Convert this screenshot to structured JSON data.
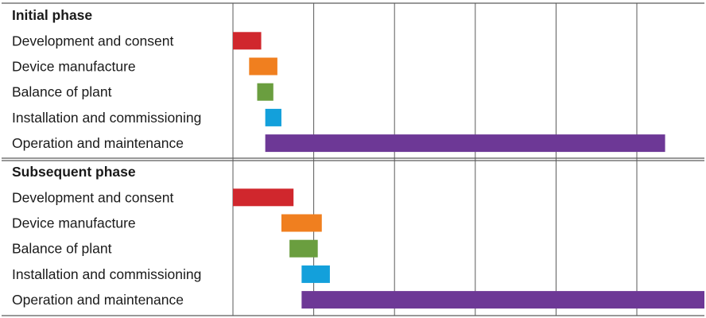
{
  "chart_data": {
    "type": "gantt",
    "title": "",
    "xlabel": "",
    "ylabel": "",
    "x_tick_labels": [],
    "x_unit": "grid column",
    "xlim": [
      0,
      6
    ],
    "grid": true,
    "legend": "none",
    "phases": [
      {
        "name": "Initial phase",
        "tasks": [
          {
            "name": "Development and consent",
            "start": 0.0,
            "end": 0.35,
            "color": "#d0272d"
          },
          {
            "name": "Device manufacture",
            "start": 0.2,
            "end": 0.55,
            "color": "#f07f1f"
          },
          {
            "name": "Balance of plant",
            "start": 0.3,
            "end": 0.5,
            "color": "#6a9e3f"
          },
          {
            "name": "Installation and commissioning",
            "start": 0.4,
            "end": 0.6,
            "color": "#13a0db"
          },
          {
            "name": "Operation and maintenance",
            "start": 0.4,
            "end": 5.35,
            "color": "#6d3896"
          }
        ]
      },
      {
        "name": "Subsequent phase",
        "tasks": [
          {
            "name": "Development and consent",
            "start": 0.0,
            "end": 0.75,
            "color": "#d0272d"
          },
          {
            "name": "Device manufacture",
            "start": 0.6,
            "end": 1.1,
            "color": "#f07f1f"
          },
          {
            "name": "Balance of plant",
            "start": 0.7,
            "end": 1.05,
            "color": "#6a9e3f"
          },
          {
            "name": "Installation and commissioning",
            "start": 0.85,
            "end": 1.2,
            "color": "#13a0db"
          },
          {
            "name": "Operation and maintenance",
            "start": 0.85,
            "end": 5.85,
            "color": "#6d3896"
          }
        ]
      }
    ]
  }
}
